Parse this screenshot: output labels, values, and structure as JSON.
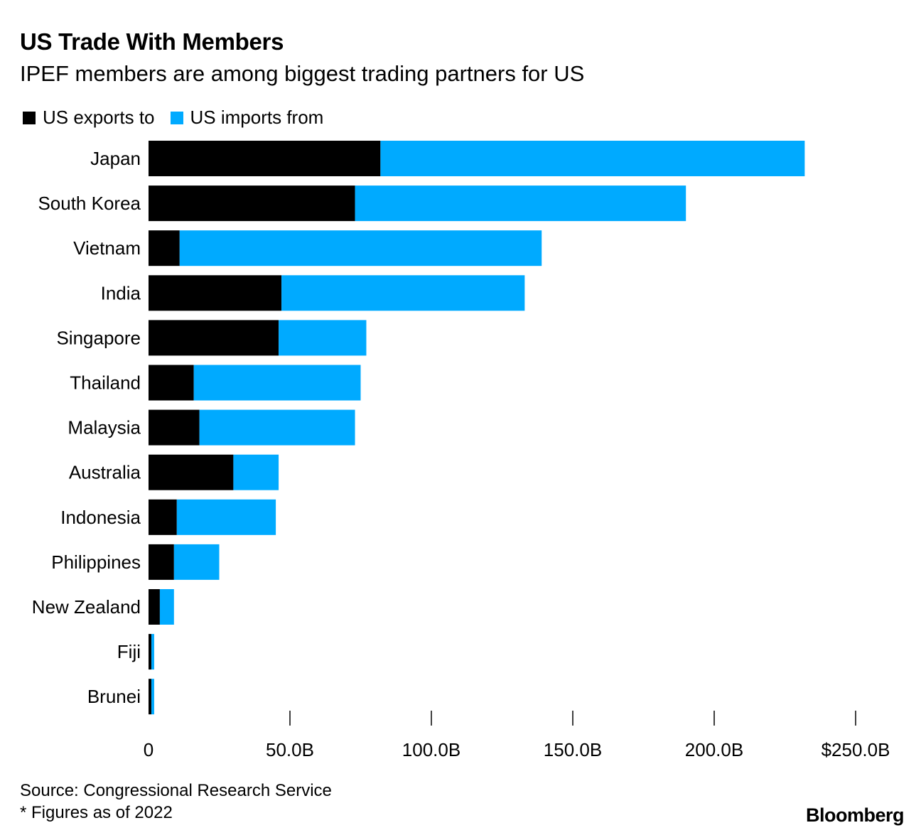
{
  "title": "US Trade With Members",
  "subtitle": "IPEF members are among biggest trading partners for US",
  "legend": [
    {
      "label": "US exports to",
      "color": "#000000"
    },
    {
      "label": "US imports from",
      "color": "#00aaff"
    }
  ],
  "chart_data": {
    "type": "bar",
    "orientation": "horizontal",
    "stacked": true,
    "categories": [
      "Japan",
      "South Korea",
      "Vietnam",
      "India",
      "Singapore",
      "Thailand",
      "Malaysia",
      "Australia",
      "Indonesia",
      "Philippines",
      "New Zealand",
      "Fiji",
      "Brunei"
    ],
    "series": [
      {
        "name": "US exports to",
        "color": "#000000",
        "values": [
          82,
          73,
          11,
          47,
          46,
          16,
          18,
          30,
          10,
          9,
          4,
          1,
          1
        ]
      },
      {
        "name": "US imports from",
        "color": "#00aaff",
        "values": [
          150,
          117,
          128,
          86,
          31,
          59,
          55,
          16,
          35,
          16,
          5,
          1,
          1
        ]
      }
    ],
    "xlim": [
      0,
      250
    ],
    "xticks": [
      0,
      50,
      100,
      150,
      200,
      250
    ],
    "xtick_labels": [
      "0",
      "50.0B",
      "100.0B",
      "150.0B",
      "200.0B",
      "$250.0B"
    ]
  },
  "source": "Source: Congressional Research Service",
  "footnote": "* Figures as of 2022",
  "brand": "Bloomberg"
}
